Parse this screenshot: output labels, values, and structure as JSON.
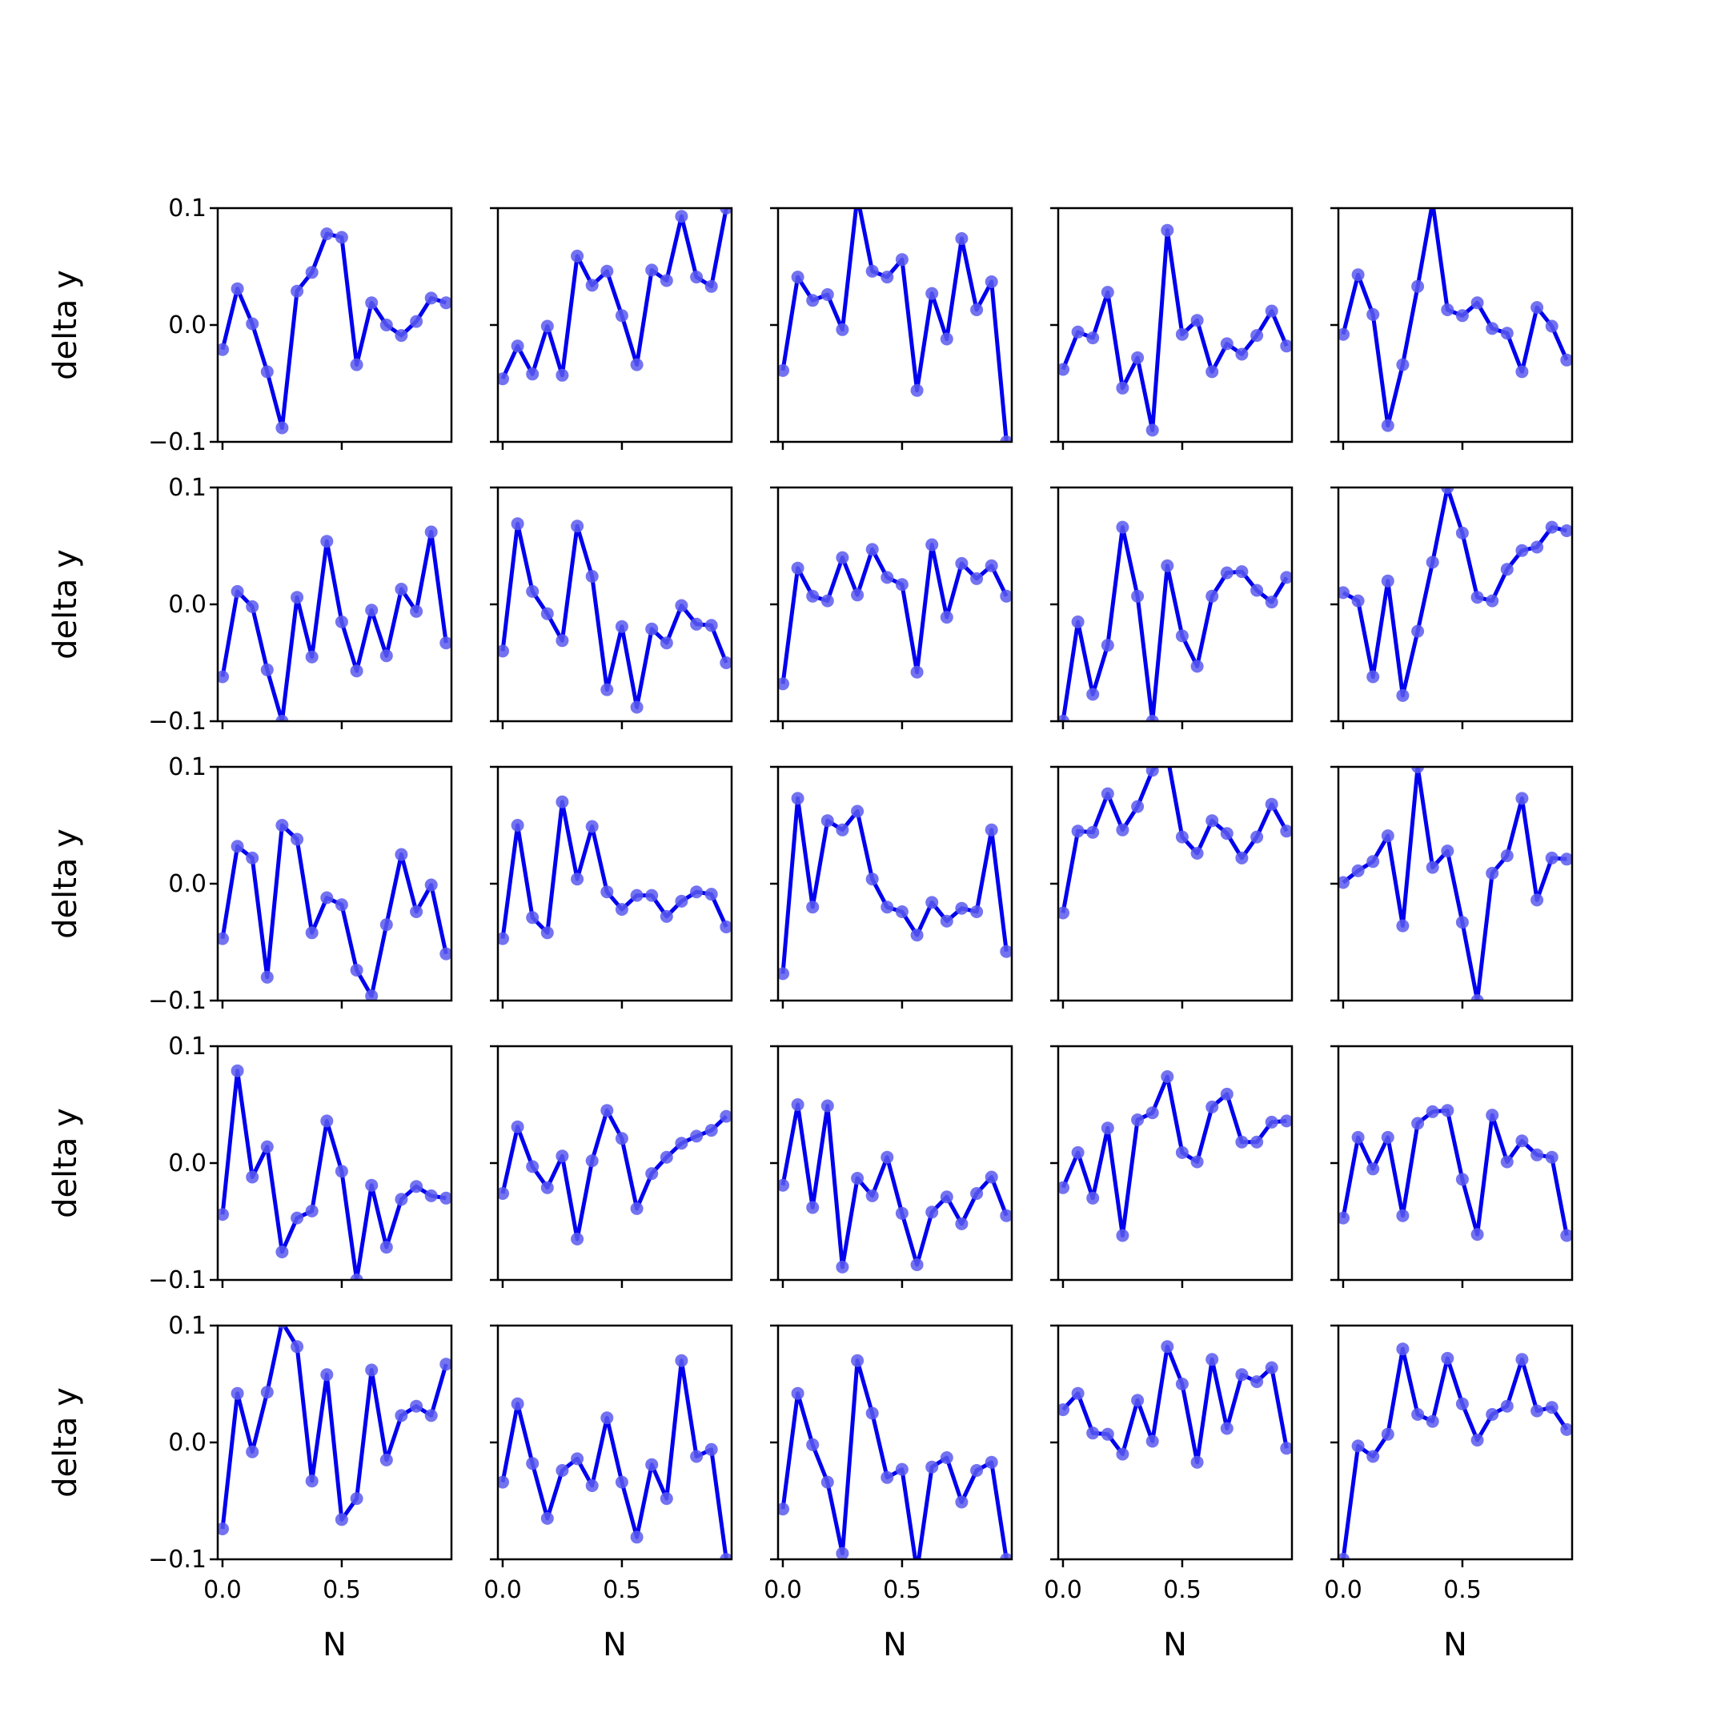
{
  "figure": {
    "layout": "5x5 small multiples",
    "line_color": "#0000ee",
    "marker_color": "#5a5aee",
    "shared_x_axis": true,
    "shared_y_axis": true
  },
  "chart_data": {
    "type": "line",
    "rows": 5,
    "cols": 5,
    "xlabel": "N",
    "ylabel": "delta y",
    "xlim": [
      -0.02,
      0.96
    ],
    "ylim": [
      -0.1,
      0.1
    ],
    "xticks": [
      0.0,
      0.5
    ],
    "xtick_labels": [
      "0.0",
      "0.5"
    ],
    "yticks": [
      -0.1,
      0.0,
      0.1
    ],
    "ytick_labels": [
      "−0.1",
      "0.0",
      "0.1"
    ],
    "x": [
      0.0,
      0.0625,
      0.125,
      0.1875,
      0.25,
      0.3125,
      0.375,
      0.4375,
      0.5,
      0.5625,
      0.625,
      0.6875,
      0.75,
      0.8125,
      0.875,
      0.9375
    ],
    "panels": [
      {
        "row": 1,
        "col": 1,
        "values": [
          -0.021,
          0.031,
          0.001,
          -0.04,
          -0.088,
          0.029,
          0.045,
          0.078,
          0.075,
          -0.034,
          0.019,
          0.0,
          -0.009,
          0.003,
          0.023,
          0.019
        ]
      },
      {
        "row": 1,
        "col": 2,
        "values": [
          -0.046,
          -0.018,
          -0.042,
          -0.001,
          -0.043,
          0.059,
          0.034,
          0.046,
          0.008,
          -0.034,
          0.047,
          0.038,
          0.093,
          0.041,
          0.033,
          0.1
        ]
      },
      {
        "row": 1,
        "col": 3,
        "values": [
          -0.039,
          0.041,
          0.021,
          0.026,
          -0.004,
          0.11,
          0.046,
          0.041,
          0.056,
          -0.056,
          0.027,
          -0.012,
          0.074,
          0.013,
          0.037,
          -0.1
        ]
      },
      {
        "row": 1,
        "col": 4,
        "values": [
          -0.038,
          -0.006,
          -0.011,
          0.028,
          -0.054,
          -0.028,
          -0.09,
          0.081,
          -0.008,
          0.004,
          -0.04,
          -0.016,
          -0.025,
          -0.009,
          0.012,
          -0.018
        ]
      },
      {
        "row": 1,
        "col": 5,
        "values": [
          -0.008,
          0.043,
          0.009,
          -0.086,
          -0.034,
          0.033,
          0.105,
          0.013,
          0.008,
          0.019,
          -0.003,
          -0.007,
          -0.04,
          0.015,
          -0.001,
          -0.03
        ]
      },
      {
        "row": 2,
        "col": 1,
        "values": [
          -0.062,
          0.011,
          -0.002,
          -0.056,
          -0.1,
          0.006,
          -0.045,
          0.054,
          -0.015,
          -0.057,
          -0.005,
          -0.044,
          0.013,
          -0.006,
          0.062,
          -0.033
        ]
      },
      {
        "row": 2,
        "col": 2,
        "values": [
          -0.04,
          0.069,
          0.011,
          -0.008,
          -0.031,
          0.067,
          0.024,
          -0.073,
          -0.019,
          -0.088,
          -0.021,
          -0.033,
          -0.001,
          -0.017,
          -0.018,
          -0.05
        ]
      },
      {
        "row": 2,
        "col": 3,
        "values": [
          -0.068,
          0.031,
          0.007,
          0.003,
          0.04,
          0.008,
          0.047,
          0.023,
          0.017,
          -0.058,
          0.051,
          -0.011,
          0.035,
          0.022,
          0.033,
          0.007
        ]
      },
      {
        "row": 2,
        "col": 4,
        "values": [
          -0.1,
          -0.015,
          -0.077,
          -0.035,
          0.066,
          0.007,
          -0.1,
          0.033,
          -0.027,
          -0.053,
          0.007,
          0.027,
          0.028,
          0.012,
          0.002,
          0.023
        ]
      },
      {
        "row": 2,
        "col": 5,
        "values": [
          0.01,
          0.003,
          -0.062,
          0.02,
          -0.078,
          -0.023,
          0.036,
          0.1,
          0.061,
          0.006,
          0.003,
          0.03,
          0.046,
          0.049,
          0.066,
          0.063
        ]
      },
      {
        "row": 3,
        "col": 1,
        "values": [
          -0.047,
          0.032,
          0.022,
          -0.08,
          0.05,
          0.038,
          -0.042,
          -0.012,
          -0.018,
          -0.074,
          -0.096,
          -0.035,
          0.025,
          -0.024,
          -0.001,
          -0.06
        ]
      },
      {
        "row": 3,
        "col": 2,
        "values": [
          -0.047,
          0.05,
          -0.029,
          -0.042,
          0.07,
          0.004,
          0.049,
          -0.007,
          -0.022,
          -0.01,
          -0.01,
          -0.028,
          -0.015,
          -0.007,
          -0.009,
          -0.037
        ]
      },
      {
        "row": 3,
        "col": 3,
        "values": [
          -0.077,
          0.073,
          -0.02,
          0.054,
          0.046,
          0.062,
          0.004,
          -0.02,
          -0.024,
          -0.044,
          -0.016,
          -0.032,
          -0.021,
          -0.024,
          0.046,
          -0.058
        ]
      },
      {
        "row": 3,
        "col": 4,
        "values": [
          -0.025,
          0.045,
          0.044,
          0.077,
          0.046,
          0.066,
          0.097,
          0.11,
          0.04,
          0.026,
          0.054,
          0.043,
          0.022,
          0.04,
          0.068,
          0.045
        ]
      },
      {
        "row": 3,
        "col": 5,
        "values": [
          0.001,
          0.011,
          0.019,
          0.041,
          -0.036,
          0.1,
          0.014,
          0.028,
          -0.033,
          -0.1,
          0.009,
          0.024,
          0.073,
          -0.014,
          0.022,
          0.021
        ]
      },
      {
        "row": 4,
        "col": 1,
        "values": [
          -0.044,
          0.079,
          -0.012,
          0.014,
          -0.076,
          -0.047,
          -0.041,
          0.036,
          -0.007,
          -0.1,
          -0.019,
          -0.072,
          -0.031,
          -0.02,
          -0.028,
          -0.03
        ]
      },
      {
        "row": 4,
        "col": 2,
        "values": [
          -0.026,
          0.031,
          -0.003,
          -0.021,
          0.006,
          -0.065,
          0.002,
          0.045,
          0.021,
          -0.039,
          -0.009,
          0.005,
          0.017,
          0.023,
          0.028,
          0.04
        ]
      },
      {
        "row": 4,
        "col": 3,
        "values": [
          -0.019,
          0.05,
          -0.038,
          0.049,
          -0.089,
          -0.013,
          -0.028,
          0.005,
          -0.043,
          -0.087,
          -0.042,
          -0.029,
          -0.052,
          -0.026,
          -0.012,
          -0.045
        ]
      },
      {
        "row": 4,
        "col": 4,
        "values": [
          -0.021,
          0.009,
          -0.03,
          0.03,
          -0.062,
          0.037,
          0.043,
          0.074,
          0.009,
          0.001,
          0.048,
          0.059,
          0.018,
          0.018,
          0.035,
          0.036
        ]
      },
      {
        "row": 4,
        "col": 5,
        "values": [
          -0.047,
          0.022,
          -0.005,
          0.022,
          -0.045,
          0.034,
          0.044,
          0.045,
          -0.014,
          -0.061,
          0.041,
          0.001,
          0.019,
          0.007,
          0.005,
          -0.062
        ]
      },
      {
        "row": 5,
        "col": 1,
        "values": [
          -0.074,
          0.042,
          -0.008,
          0.043,
          0.103,
          0.082,
          -0.033,
          0.058,
          -0.066,
          -0.048,
          0.062,
          -0.015,
          0.023,
          0.031,
          0.023,
          0.067
        ]
      },
      {
        "row": 5,
        "col": 2,
        "values": [
          -0.034,
          0.033,
          -0.018,
          -0.065,
          -0.024,
          -0.014,
          -0.037,
          0.021,
          -0.034,
          -0.081,
          -0.019,
          -0.048,
          0.07,
          -0.012,
          -0.006,
          -0.1
        ]
      },
      {
        "row": 5,
        "col": 3,
        "values": [
          -0.057,
          0.042,
          -0.002,
          -0.034,
          -0.095,
          0.07,
          0.025,
          -0.03,
          -0.023,
          -0.11,
          -0.021,
          -0.013,
          -0.051,
          -0.024,
          -0.017,
          -0.1
        ]
      },
      {
        "row": 5,
        "col": 4,
        "values": [
          0.028,
          0.042,
          0.008,
          0.007,
          -0.01,
          0.036,
          0.001,
          0.082,
          0.05,
          -0.017,
          0.071,
          0.012,
          0.058,
          0.052,
          0.064,
          -0.005
        ]
      },
      {
        "row": 5,
        "col": 5,
        "values": [
          -0.1,
          -0.003,
          -0.012,
          0.007,
          0.08,
          0.024,
          0.018,
          0.072,
          0.033,
          0.002,
          0.024,
          0.031,
          0.071,
          0.027,
          0.03,
          0.011
        ]
      }
    ]
  }
}
